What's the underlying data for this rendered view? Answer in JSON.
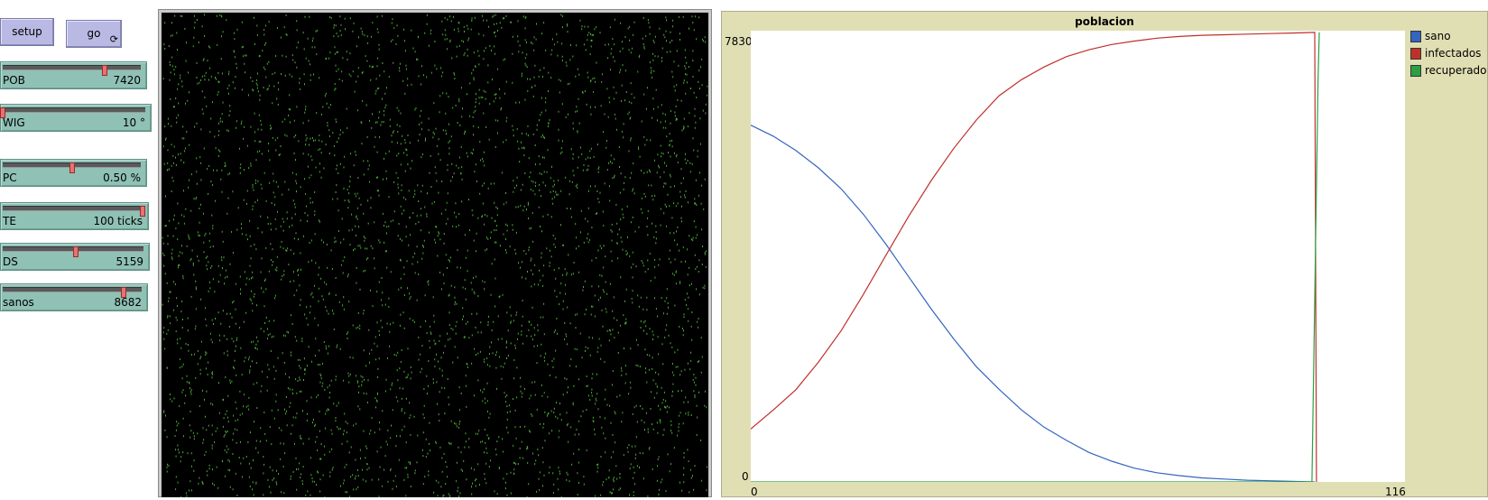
{
  "buttons": {
    "setup": "setup",
    "go": "go",
    "go_forever_icon": "cycle-arrows-icon"
  },
  "sliders": [
    {
      "name": "POB",
      "display": "7420",
      "level": 0.74
    },
    {
      "name": "WIG",
      "display": "10 °",
      "level": 0.0
    },
    {
      "name": "PC",
      "display": "0.50 %",
      "level": 0.5
    },
    {
      "name": "TE",
      "display": "100 ticks",
      "level": 1.0
    },
    {
      "name": "DS",
      "display": "5159",
      "level": 0.52
    },
    {
      "name": "sanos",
      "display": "8682",
      "level": 0.87
    }
  ],
  "world": {
    "background": "#000000",
    "agent_color": "#4caf3a"
  },
  "plot": {
    "title": "poblacion",
    "y_max_label": "7830",
    "y_min_label": "0",
    "x_min_label": "0",
    "x_max_label": "116"
  },
  "chart_data": {
    "type": "line",
    "title": "poblacion",
    "xlim": [
      0,
      116
    ],
    "ylim": [
      0,
      7830
    ],
    "series": [
      {
        "name": "sano",
        "color": "#3465c0",
        "x": [
          0,
          4,
          8,
          12,
          16,
          20,
          24,
          28,
          32,
          36,
          40,
          44,
          48,
          52,
          56,
          60,
          64,
          68,
          72,
          76,
          80,
          84,
          88,
          92,
          96,
          100
        ],
        "y": [
          6190,
          6000,
          5750,
          5450,
          5090,
          4640,
          4120,
          3560,
          3000,
          2480,
          2000,
          1610,
          1250,
          950,
          720,
          510,
          360,
          240,
          160,
          110,
          70,
          50,
          30,
          20,
          10,
          0
        ]
      },
      {
        "name": "infectados",
        "color": "#c0302b",
        "x": [
          0,
          4,
          8,
          12,
          16,
          20,
          24,
          28,
          32,
          36,
          40,
          44,
          48,
          52,
          56,
          60,
          64,
          68,
          72,
          76,
          80,
          84,
          88,
          92,
          96,
          100,
          100.3
        ],
        "y": [
          920,
          1250,
          1600,
          2080,
          2620,
          3260,
          3940,
          4610,
          5230,
          5790,
          6280,
          6700,
          6980,
          7200,
          7380,
          7500,
          7590,
          7650,
          7700,
          7730,
          7750,
          7760,
          7770,
          7780,
          7790,
          7800,
          0
        ]
      },
      {
        "name": "recuperado",
        "color": "#2aa043",
        "x": [
          0,
          20,
          40,
          60,
          80,
          99.5,
          100.6,
          100.8
        ],
        "y": [
          0,
          0,
          0,
          0,
          0,
          0,
          7000,
          7800
        ]
      }
    ]
  }
}
